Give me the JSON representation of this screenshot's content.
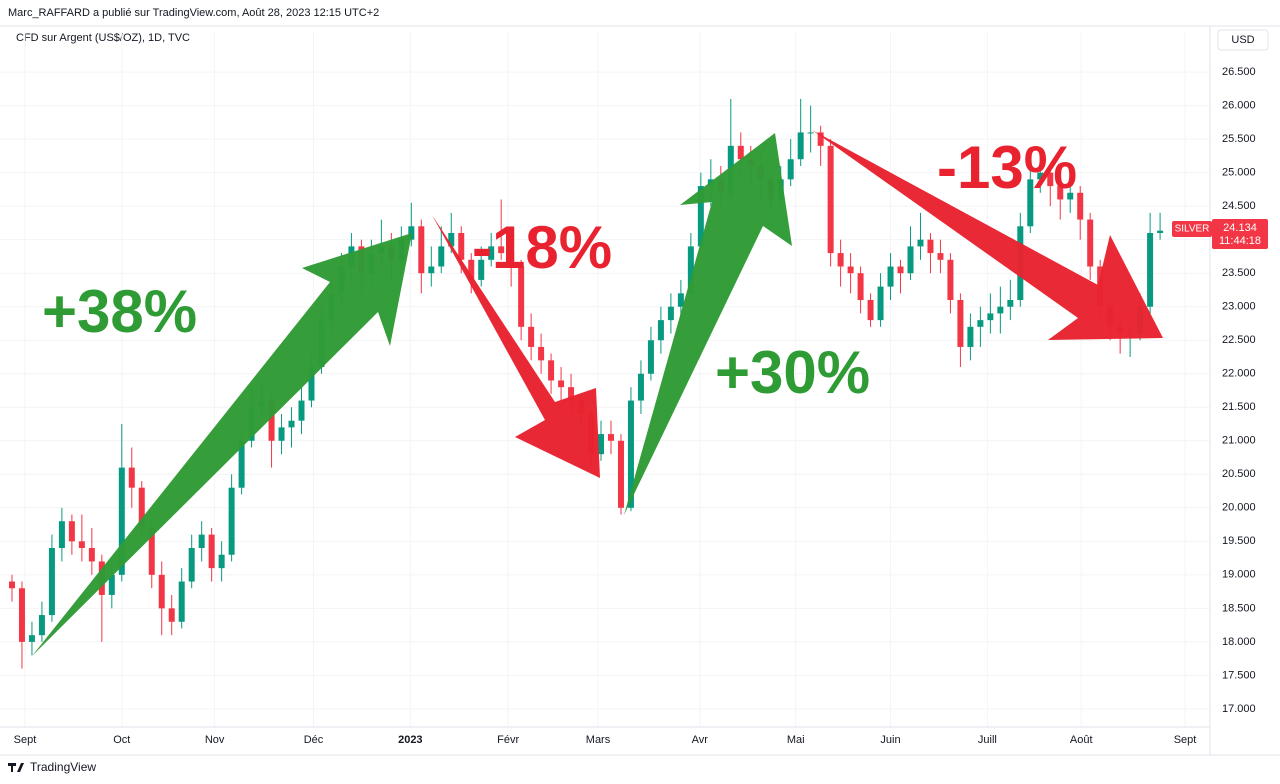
{
  "chart_data": {
    "type": "candlestick",
    "header": "Marc_RAFFARD a publié sur TradingView.com, Août 28, 2023 12:15 UTC+2",
    "title": "CFD sur Argent (US$/OZ), 1D, TVC",
    "currency": "USD",
    "symbol": "SILVER",
    "countdown": "11:44:18",
    "brand": "TradingView",
    "up_color": "#089981",
    "down_color": "#f23645",
    "grid": true,
    "xlim": [
      -1.2,
      120
    ],
    "ylim": [
      16.73,
      26.8
    ],
    "xticks": [
      {
        "value": 1.3,
        "label": "Sept"
      },
      {
        "value": 11.0,
        "label": "Oct"
      },
      {
        "value": 20.3,
        "label": "Nov"
      },
      {
        "value": 30.2,
        "label": "Déc"
      },
      {
        "value": 39.9,
        "label": "2023"
      },
      {
        "value": 49.7,
        "label": "Févr"
      },
      {
        "value": 58.7,
        "label": "Mars"
      },
      {
        "value": 68.9,
        "label": "Avr"
      },
      {
        "value": 78.5,
        "label": "Mai"
      },
      {
        "value": 88.0,
        "label": "Juin"
      },
      {
        "value": 97.7,
        "label": "Juill"
      },
      {
        "value": 107.1,
        "label": "Août"
      },
      {
        "value": 117.5,
        "label": "Sept"
      }
    ],
    "yticks": [
      {
        "value": 17.0,
        "label": "17.000"
      },
      {
        "value": 17.5,
        "label": "17.500"
      },
      {
        "value": 18.0,
        "label": "18.000"
      },
      {
        "value": 18.5,
        "label": "18.500"
      },
      {
        "value": 19.0,
        "label": "19.000"
      },
      {
        "value": 19.5,
        "label": "19.500"
      },
      {
        "value": 20.0,
        "label": "20.000"
      },
      {
        "value": 20.5,
        "label": "20.500"
      },
      {
        "value": 21.0,
        "label": "21.000"
      },
      {
        "value": 21.5,
        "label": "21.500"
      },
      {
        "value": 22.0,
        "label": "22.000"
      },
      {
        "value": 22.5,
        "label": "22.500"
      },
      {
        "value": 23.0,
        "label": "23.000"
      },
      {
        "value": 23.5,
        "label": "23.500"
      },
      {
        "value": 24.0,
        "label": "24.000"
      },
      {
        "value": 24.5,
        "label": "24.500"
      },
      {
        "value": 25.0,
        "label": "25.000"
      },
      {
        "value": 25.5,
        "label": "25.500"
      },
      {
        "value": 26.0,
        "label": "26.000"
      },
      {
        "value": 26.5,
        "label": "26.500"
      }
    ],
    "annotations": [
      {
        "text": "+38%",
        "color": "#2e9b35"
      },
      {
        "text": "-18%",
        "color": "#e8232f"
      },
      {
        "text": "+30%",
        "color": "#2e9b35"
      },
      {
        "text": "-13%",
        "color": "#e8232f"
      }
    ],
    "ohlc": [
      [
        18.9,
        19.0,
        18.6,
        18.8
      ],
      [
        18.8,
        18.9,
        17.6,
        18.0
      ],
      [
        18.0,
        18.3,
        17.8,
        18.1
      ],
      [
        18.1,
        18.6,
        18.0,
        18.4
      ],
      [
        18.4,
        19.6,
        18.3,
        19.4
      ],
      [
        19.4,
        20.0,
        19.2,
        19.8
      ],
      [
        19.8,
        19.9,
        19.3,
        19.5
      ],
      [
        19.5,
        19.9,
        19.2,
        19.4
      ],
      [
        19.4,
        19.7,
        19.0,
        19.2
      ],
      [
        19.2,
        19.3,
        18.0,
        18.7
      ],
      [
        18.7,
        19.2,
        18.5,
        19.0
      ],
      [
        19.0,
        21.25,
        18.9,
        20.6
      ],
      [
        20.6,
        20.9,
        20.0,
        20.3
      ],
      [
        20.3,
        20.4,
        19.5,
        19.7
      ],
      [
        19.7,
        19.8,
        18.8,
        19.0
      ],
      [
        19.0,
        19.2,
        18.1,
        18.5
      ],
      [
        18.5,
        18.7,
        18.1,
        18.3
      ],
      [
        18.3,
        19.1,
        18.2,
        18.9
      ],
      [
        18.9,
        19.6,
        18.8,
        19.4
      ],
      [
        19.4,
        19.8,
        19.2,
        19.6
      ],
      [
        19.6,
        19.7,
        18.9,
        19.1
      ],
      [
        19.1,
        19.5,
        18.9,
        19.3
      ],
      [
        19.3,
        20.5,
        19.2,
        20.3
      ],
      [
        20.3,
        21.2,
        20.2,
        21.0
      ],
      [
        21.0,
        21.8,
        20.9,
        21.5
      ],
      [
        21.5,
        21.9,
        21.3,
        21.6
      ],
      [
        21.6,
        21.7,
        20.6,
        21.0
      ],
      [
        21.0,
        21.4,
        20.8,
        21.2
      ],
      [
        21.2,
        21.5,
        20.9,
        21.3
      ],
      [
        21.3,
        21.8,
        21.1,
        21.6
      ],
      [
        21.6,
        22.3,
        21.5,
        22.1
      ],
      [
        22.1,
        23.0,
        22.0,
        22.8
      ],
      [
        22.8,
        23.4,
        22.6,
        23.2
      ],
      [
        23.2,
        23.8,
        23.0,
        23.6
      ],
      [
        23.6,
        24.1,
        23.4,
        23.9
      ],
      [
        23.9,
        24.0,
        23.2,
        23.5
      ],
      [
        23.5,
        24.0,
        23.3,
        23.8
      ],
      [
        23.8,
        24.3,
        23.6,
        23.9
      ],
      [
        23.9,
        24.1,
        23.4,
        23.7
      ],
      [
        23.7,
        24.2,
        23.5,
        24.0
      ],
      [
        24.0,
        24.55,
        23.9,
        24.2
      ],
      [
        24.2,
        24.3,
        23.2,
        23.5
      ],
      [
        23.5,
        23.9,
        23.3,
        23.6
      ],
      [
        23.6,
        24.2,
        23.5,
        23.9
      ],
      [
        23.9,
        24.4,
        23.8,
        24.1
      ],
      [
        24.1,
        24.2,
        23.5,
        23.7
      ],
      [
        23.7,
        23.8,
        23.2,
        23.4
      ],
      [
        23.4,
        23.9,
        23.3,
        23.7
      ],
      [
        23.7,
        24.1,
        23.6,
        23.9
      ],
      [
        23.9,
        24.6,
        23.7,
        23.8
      ],
      [
        23.8,
        24.0,
        23.3,
        23.6
      ],
      [
        23.6,
        23.7,
        22.5,
        22.7
      ],
      [
        22.7,
        22.9,
        22.2,
        22.4
      ],
      [
        22.4,
        22.6,
        22.0,
        22.2
      ],
      [
        22.2,
        22.3,
        21.7,
        21.9
      ],
      [
        21.9,
        22.1,
        21.6,
        21.8
      ],
      [
        21.8,
        22.0,
        21.4,
        21.6
      ],
      [
        21.6,
        21.7,
        21.2,
        21.4
      ],
      [
        21.4,
        21.5,
        20.6,
        20.8
      ],
      [
        20.8,
        21.3,
        20.7,
        21.1
      ],
      [
        21.1,
        21.3,
        20.8,
        21.0
      ],
      [
        21.0,
        21.1,
        19.9,
        20.0
      ],
      [
        20.0,
        21.8,
        19.95,
        21.6
      ],
      [
        21.6,
        22.2,
        21.4,
        22.0
      ],
      [
        22.0,
        22.7,
        21.9,
        22.5
      ],
      [
        22.5,
        23.0,
        22.3,
        22.8
      ],
      [
        22.8,
        23.2,
        22.6,
        23.0
      ],
      [
        23.0,
        23.4,
        22.8,
        23.2
      ],
      [
        23.2,
        24.1,
        23.1,
        23.9
      ],
      [
        23.9,
        25.0,
        23.8,
        24.8
      ],
      [
        24.8,
        25.2,
        24.5,
        24.9
      ],
      [
        24.9,
        25.1,
        24.4,
        24.7
      ],
      [
        24.7,
        26.1,
        24.6,
        25.4
      ],
      [
        25.4,
        25.6,
        24.9,
        25.2
      ],
      [
        25.2,
        25.4,
        24.8,
        25.1
      ],
      [
        25.1,
        25.3,
        24.6,
        24.9
      ],
      [
        24.9,
        25.0,
        24.4,
        24.6
      ],
      [
        24.6,
        25.1,
        24.5,
        24.9
      ],
      [
        24.9,
        25.5,
        24.8,
        25.2
      ],
      [
        25.2,
        26.1,
        25.1,
        25.6
      ],
      [
        25.6,
        26.0,
        25.3,
        25.6
      ],
      [
        25.6,
        25.7,
        25.1,
        25.4
      ],
      [
        25.4,
        25.5,
        23.6,
        23.8
      ],
      [
        23.8,
        24.0,
        23.3,
        23.6
      ],
      [
        23.6,
        23.8,
        23.2,
        23.5
      ],
      [
        23.5,
        23.6,
        22.9,
        23.1
      ],
      [
        23.1,
        23.2,
        22.7,
        22.8
      ],
      [
        22.8,
        23.5,
        22.7,
        23.3
      ],
      [
        23.3,
        23.8,
        23.1,
        23.6
      ],
      [
        23.6,
        23.7,
        23.2,
        23.5
      ],
      [
        23.5,
        24.2,
        23.4,
        23.9
      ],
      [
        23.9,
        24.4,
        23.7,
        24.0
      ],
      [
        24.0,
        24.1,
        23.5,
        23.8
      ],
      [
        23.8,
        24.0,
        23.5,
        23.7
      ],
      [
        23.7,
        23.8,
        22.9,
        23.1
      ],
      [
        23.1,
        23.2,
        22.1,
        22.4
      ],
      [
        22.4,
        22.9,
        22.2,
        22.7
      ],
      [
        22.7,
        23.0,
        22.4,
        22.8
      ],
      [
        22.8,
        23.2,
        22.6,
        22.9
      ],
      [
        22.9,
        23.3,
        22.6,
        23.0
      ],
      [
        23.0,
        23.4,
        22.8,
        23.1
      ],
      [
        23.1,
        24.4,
        23.0,
        24.2
      ],
      [
        24.2,
        25.1,
        24.1,
        24.9
      ],
      [
        24.9,
        25.3,
        24.7,
        25.0
      ],
      [
        25.0,
        25.1,
        24.5,
        24.8
      ],
      [
        24.8,
        25.0,
        24.3,
        24.6
      ],
      [
        24.6,
        25.0,
        24.4,
        24.7
      ],
      [
        24.7,
        24.8,
        24.0,
        24.3
      ],
      [
        24.3,
        24.4,
        23.4,
        23.6
      ],
      [
        23.6,
        23.7,
        22.8,
        23.0
      ],
      [
        23.0,
        23.1,
        22.5,
        22.7
      ],
      [
        22.7,
        22.9,
        22.3,
        22.6
      ],
      [
        22.6,
        22.8,
        22.25,
        22.6
      ],
      [
        22.6,
        23.2,
        22.5,
        23.0
      ],
      [
        23.0,
        24.4,
        22.9,
        24.1
      ],
      [
        24.1,
        24.4,
        24.0,
        24.134
      ]
    ]
  }
}
